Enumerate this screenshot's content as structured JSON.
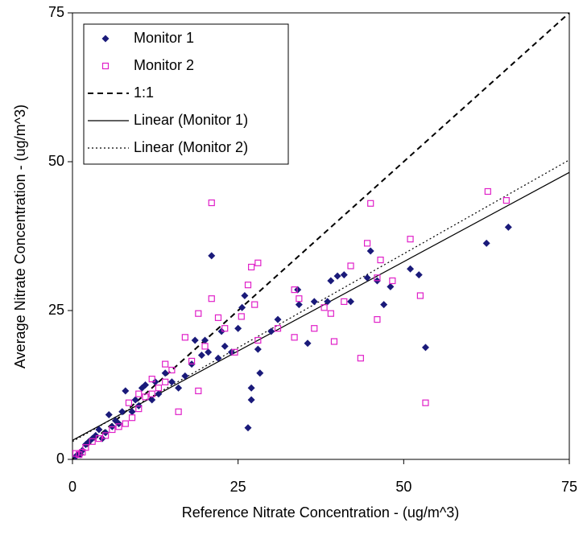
{
  "chart_data": {
    "type": "scatter",
    "x_label": "Reference Nitrate Concentration - (ug/m^3)",
    "y_label": "Average Nitrate Concentration - (ug/m^3)",
    "xlim": [
      0,
      75
    ],
    "ylim": [
      0,
      75
    ],
    "xticks": [
      0,
      25,
      50,
      75
    ],
    "yticks": [
      0,
      25,
      50,
      75
    ],
    "grid": false,
    "legend": "upper-left",
    "series": [
      {
        "name": "Monitor 1",
        "kind": "points",
        "marker": "diamond",
        "color": "#1a1a7a",
        "x": [
          62.5,
          65.8,
          53.3,
          52.3,
          51,
          47,
          45,
          44.5,
          42,
          41,
          40,
          39,
          38.5,
          36.5,
          34,
          34.2,
          31,
          28,
          28.3,
          27,
          26.5,
          27,
          26,
          25.6,
          21,
          23,
          22,
          20,
          19.5,
          18,
          17,
          16,
          15,
          14,
          13,
          12,
          11,
          10,
          9,
          8,
          7.5,
          7,
          6,
          5,
          4.5,
          4,
          3.5,
          3,
          2.5,
          2,
          1.5,
          1,
          0.5,
          1.2,
          5.5,
          6.5,
          9.5,
          10.5,
          12.5,
          18.5,
          20.5,
          22.5,
          24,
          25,
          30,
          35.5,
          46,
          48
        ],
        "values": [
          36.3,
          39,
          18.8,
          31,
          32,
          26,
          35,
          30.5,
          26.5,
          31,
          30.8,
          30,
          26.5,
          26.5,
          28.5,
          26,
          23.5,
          18.5,
          14.5,
          10,
          5.3,
          12,
          27.5,
          25.5,
          34.2,
          19,
          17,
          20,
          17.5,
          16,
          14,
          12,
          13,
          14.5,
          11,
          10,
          12.5,
          9,
          8,
          11.5,
          8,
          6,
          5.5,
          4.5,
          3.5,
          5,
          4,
          3.5,
          3,
          2.5,
          1.5,
          1,
          0.5,
          0.8,
          7.5,
          6.5,
          10,
          12,
          13,
          20,
          18,
          21.5,
          18,
          22,
          21.5,
          19.5,
          30,
          29
        ]
      },
      {
        "name": "Monitor 2",
        "kind": "points",
        "marker": "square",
        "color": "#e020c8",
        "x": [
          62.7,
          65.5,
          53.3,
          52.5,
          51,
          48.3,
          46.5,
          46,
          45,
          44.5,
          46,
          43.5,
          42,
          41,
          39.5,
          39,
          38,
          36.5,
          34.2,
          33.5,
          33.5,
          31,
          28,
          27,
          28,
          27.5,
          26.5,
          25.5,
          22,
          21,
          21,
          19,
          19,
          17,
          16,
          15,
          14,
          13,
          12,
          11,
          10,
          9,
          8,
          7,
          6,
          5,
          4,
          3,
          2,
          1.5,
          1,
          0.5,
          10,
          12,
          18,
          20,
          23,
          24.5,
          14,
          8.5
        ],
        "values": [
          45,
          43.5,
          9.5,
          27.5,
          37,
          30,
          33.5,
          30.5,
          43,
          36.3,
          23.5,
          17,
          32.5,
          26.5,
          19.8,
          24.5,
          25.5,
          22,
          27,
          20.5,
          28.5,
          22,
          33,
          32.3,
          20,
          26,
          29.3,
          24,
          23.8,
          43.1,
          27,
          24.5,
          11.5,
          20.5,
          8,
          15,
          16,
          12,
          11,
          10.5,
          8.5,
          7,
          6,
          5.5,
          5,
          4,
          3.5,
          3,
          2,
          1.2,
          0.8,
          1,
          11,
          13.5,
          16.5,
          19,
          22,
          18,
          13,
          9.5
        ]
      },
      {
        "name": "1:1",
        "kind": "line",
        "line_style": "dashed",
        "color": "#000000",
        "x": [
          0,
          75
        ],
        "values": [
          0,
          75
        ]
      },
      {
        "name": "Linear (Monitor 1)",
        "kind": "line",
        "line_style": "solid",
        "color": "#000000",
        "x": [
          0,
          75
        ],
        "values": [
          3.2,
          48.2
        ]
      },
      {
        "name": "Linear (Monitor 2)",
        "kind": "line",
        "line_style": "dotted",
        "color": "#000000",
        "x": [
          0,
          75
        ],
        "values": [
          3,
          50.3
        ]
      }
    ]
  }
}
